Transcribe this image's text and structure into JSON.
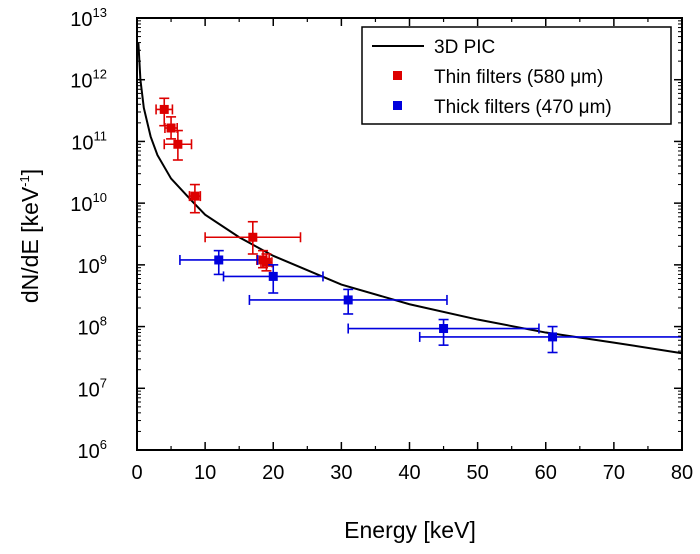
{
  "chart_data": {
    "type": "scatter",
    "title": "",
    "xlabel": "Energy [keV]",
    "ylabel_main": "dN/dE [keV",
    "ylabel_sup": "-1",
    "ylabel_close": "]",
    "xlim": [
      0,
      80
    ],
    "ylim_log10": [
      6,
      13
    ],
    "y_scale": "log",
    "x_ticks": [
      "0",
      "10",
      "20",
      "30",
      "40",
      "50",
      "60",
      "70",
      "80"
    ],
    "y_ticks": [
      {
        "base": "10",
        "exp": "6"
      },
      {
        "base": "10",
        "exp": "7"
      },
      {
        "base": "10",
        "exp": "8"
      },
      {
        "base": "10",
        "exp": "9"
      },
      {
        "base": "10",
        "exp": "10"
      },
      {
        "base": "10",
        "exp": "11"
      },
      {
        "base": "10",
        "exp": "12"
      },
      {
        "base": "10",
        "exp": "13"
      }
    ],
    "legend_position": "top-right",
    "series": [
      {
        "name": "3D PIC",
        "kind": "line",
        "color": "#000000",
        "x": [
          0.2,
          0.5,
          1,
          2,
          3,
          5,
          8,
          10,
          15,
          20,
          30,
          40,
          50,
          60,
          70,
          80
        ],
        "y": [
          4000000000000.0,
          1000000000000.0,
          350000000000.0,
          120000000000.0,
          60000000000.0,
          25000000000.0,
          11000000000.0,
          6500000000.0,
          2800000000.0,
          1400000000.0,
          480000000.0,
          230000000.0,
          130000000.0,
          80000000.0,
          55000000.0,
          37000000.0
        ]
      },
      {
        "name": "Thin filters (580 μm)",
        "kind": "points",
        "color": "#dd0000",
        "points": [
          {
            "x": 4.0,
            "y": 330000000000.0,
            "xerr": 1.2,
            "ylo": 180000000000.0,
            "yhi": 500000000000.0
          },
          {
            "x": 5.0,
            "y": 165000000000.0,
            "xerr": 0.9,
            "ylo": 110000000000.0,
            "yhi": 250000000000.0
          },
          {
            "x": 6.0,
            "y": 90000000000.0,
            "xerr": 2.0,
            "ylo": 50000000000.0,
            "yhi": 150000000000.0
          },
          {
            "x": 8.5,
            "y": 13000000000.0,
            "xerr": 0.8,
            "ylo": 7000000000.0,
            "yhi": 20000000000.0
          },
          {
            "x": 17.0,
            "y": 2800000000.0,
            "xerr": 7.0,
            "ylo": 1500000000.0,
            "yhi": 5000000000.0
          },
          {
            "x": 18.5,
            "y": 1200000000.0,
            "xerr": 0.9,
            "ylo": 900000000.0,
            "yhi": 1700000000.0
          },
          {
            "x": 19.0,
            "y": 1100000000.0,
            "xerr": 0.8,
            "ylo": 800000000.0,
            "yhi": 1500000000.0
          }
        ]
      },
      {
        "name": "Thick filters (470 μm)",
        "kind": "points",
        "color": "#0000dd",
        "points": [
          {
            "x": 12.0,
            "y": 1200000000.0,
            "xerr": 5.7,
            "ylo": 700000000.0,
            "yhi": 1700000000.0
          },
          {
            "x": 20.0,
            "y": 650000000.0,
            "xerr": 7.3,
            "ylo": 350000000.0,
            "yhi": 1000000000.0
          },
          {
            "x": 31.0,
            "y": 270000000.0,
            "xerr": 14.5,
            "ylo": 160000000.0,
            "yhi": 400000000.0
          },
          {
            "x": 45.0,
            "y": 93000000.0,
            "xerr": 14.0,
            "ylo": 50000000.0,
            "yhi": 130000000.0
          },
          {
            "x": 61.0,
            "y": 68000000.0,
            "xerr": 19.5,
            "ylo": 38000000.0,
            "yhi": 100000000.0
          }
        ]
      }
    ]
  }
}
